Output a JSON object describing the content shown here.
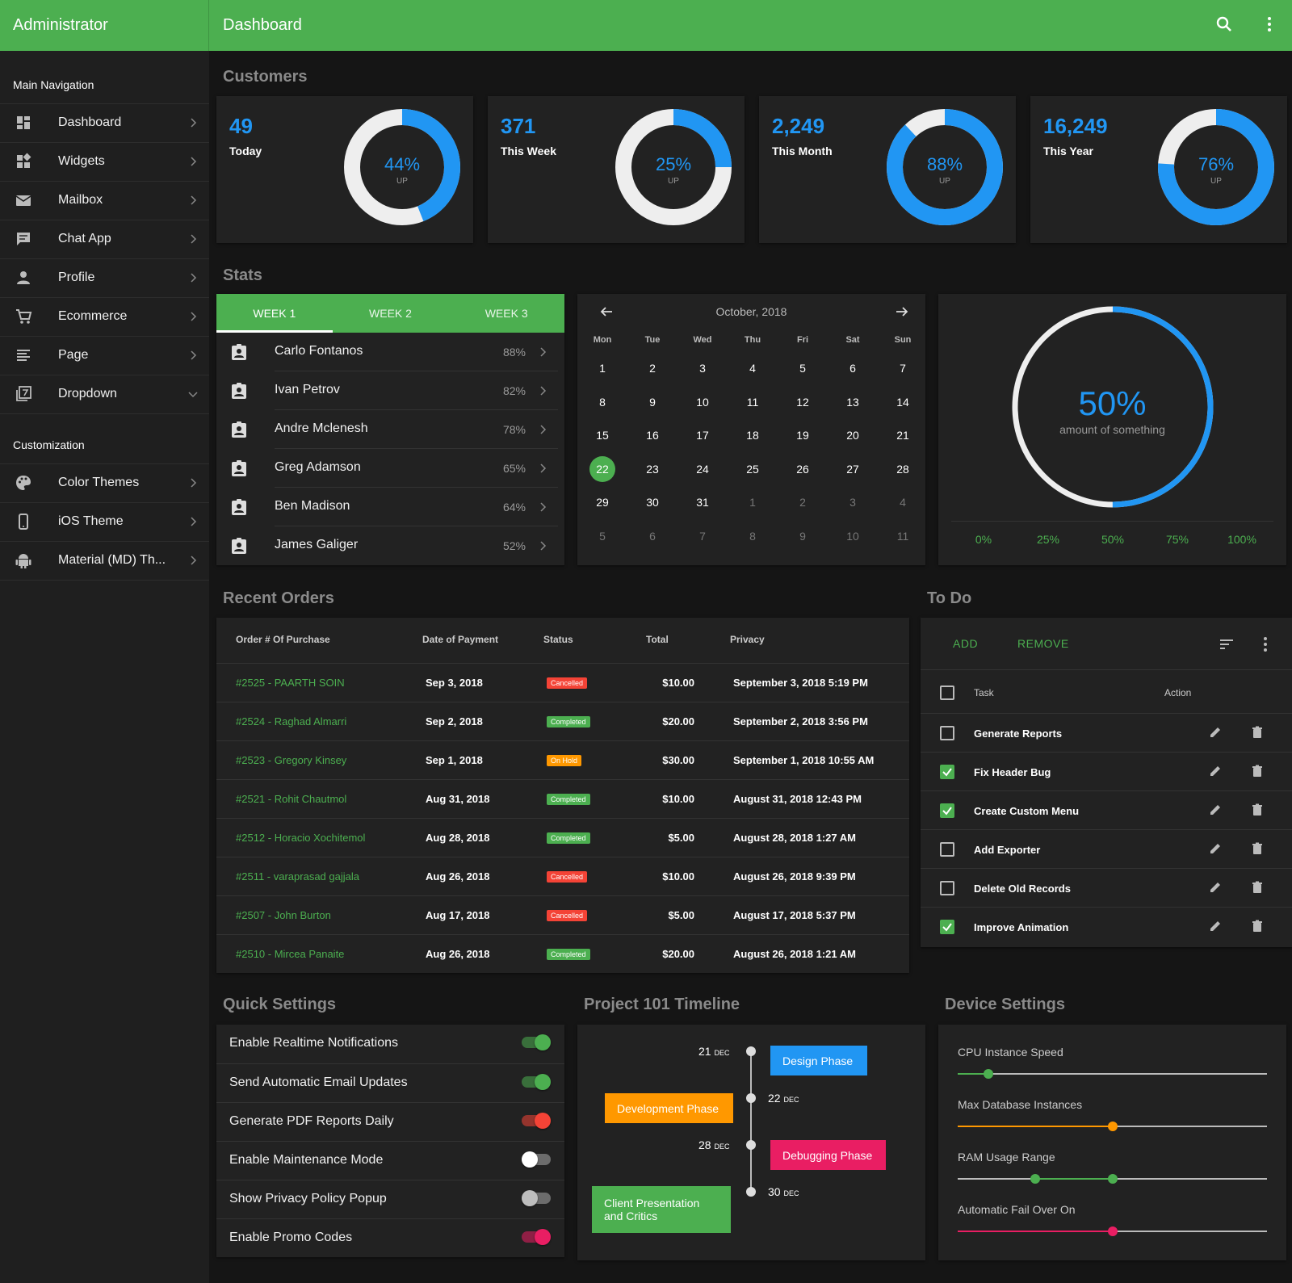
{
  "header": {
    "brand": "Administrator",
    "title": "Dashboard"
  },
  "sidebar": {
    "main_heading": "Main Navigation",
    "main_items": [
      {
        "label": "Dashboard",
        "icon": "dashboard-icon"
      },
      {
        "label": "Widgets",
        "icon": "widgets-icon"
      },
      {
        "label": "Mailbox",
        "icon": "mail-icon"
      },
      {
        "label": "Chat App",
        "icon": "chat-icon"
      },
      {
        "label": "Profile",
        "icon": "person-icon"
      },
      {
        "label": "Ecommerce",
        "icon": "cart-icon"
      },
      {
        "label": "Page",
        "icon": "page-icon"
      },
      {
        "label": "Dropdown",
        "icon": "dropdown-icon"
      }
    ],
    "custom_heading": "Customization",
    "custom_items": [
      {
        "label": "Color Themes",
        "icon": "palette-icon"
      },
      {
        "label": "iOS Theme",
        "icon": "phone-icon"
      },
      {
        "label": "Material (MD) Th...",
        "icon": "android-icon"
      }
    ]
  },
  "customers": {
    "title": "Customers",
    "cards": [
      {
        "value": "49",
        "label": "Today",
        "percent": 44,
        "percent_label": "44%",
        "sub": "UP"
      },
      {
        "value": "371",
        "label": "This Week",
        "percent": 25,
        "percent_label": "25%",
        "sub": "UP"
      },
      {
        "value": "2,249",
        "label": "This Month",
        "percent": 88,
        "percent_label": "88%",
        "sub": "UP"
      },
      {
        "value": "16,249",
        "label": "This Year",
        "percent": 76,
        "percent_label": "76%",
        "sub": "UP"
      }
    ]
  },
  "stats": {
    "title": "Stats",
    "tabs": [
      "WEEK 1",
      "WEEK 2",
      "WEEK 3"
    ],
    "people": [
      {
        "name": "Carlo Fontanos",
        "pct": "88%"
      },
      {
        "name": "Ivan Petrov",
        "pct": "82%"
      },
      {
        "name": "Andre Mclenesh",
        "pct": "78%"
      },
      {
        "name": "Greg Adamson",
        "pct": "65%"
      },
      {
        "name": "Ben Madison",
        "pct": "64%"
      },
      {
        "name": "James Galiger",
        "pct": "52%"
      }
    ]
  },
  "calendar": {
    "month": "October, 2018",
    "days_of_week": [
      "Mon",
      "Tue",
      "Wed",
      "Thu",
      "Fri",
      "Sat",
      "Sun"
    ],
    "weeks": [
      [
        "1",
        "2",
        "3",
        "4",
        "5",
        "6",
        "7"
      ],
      [
        "8",
        "9",
        "10",
        "11",
        "12",
        "13",
        "14"
      ],
      [
        "15",
        "16",
        "17",
        "18",
        "19",
        "20",
        "21"
      ],
      [
        "22",
        "23",
        "24",
        "25",
        "26",
        "27",
        "28"
      ],
      [
        "29",
        "30",
        "31",
        "1",
        "2",
        "3",
        "4"
      ],
      [
        "5",
        "6",
        "7",
        "8",
        "9",
        "10",
        "11"
      ]
    ],
    "selected": "22"
  },
  "gauge": {
    "value": 50,
    "label": "50%",
    "caption": "amount of something",
    "ticks": [
      "0%",
      "25%",
      "50%",
      "75%",
      "100%"
    ]
  },
  "orders": {
    "title": "Recent Orders",
    "columns": [
      "Order # Of Purchase",
      "Date of Payment",
      "Status",
      "Total",
      "Privacy"
    ],
    "rows": [
      {
        "order": "#2525 - PAARTH SOIN",
        "date": "Sep 3, 2018",
        "status": "Cancelled",
        "total": "$10.00",
        "privacy": "September 3, 2018 5:19 PM"
      },
      {
        "order": "#2524 - Raghad Almarri",
        "date": "Sep 2, 2018",
        "status": "Completed",
        "total": "$20.00",
        "privacy": "September 2, 2018 3:56 PM"
      },
      {
        "order": "#2523 - Gregory Kinsey",
        "date": "Sep 1, 2018",
        "status": "On Hold",
        "total": "$30.00",
        "privacy": "September 1, 2018 10:55 AM"
      },
      {
        "order": "#2521 - Rohit Chautmol",
        "date": "Aug 31, 2018",
        "status": "Completed",
        "total": "$10.00",
        "privacy": "August 31, 2018 12:43 PM"
      },
      {
        "order": "#2512 - Horacio Xochitemol",
        "date": "Aug 28, 2018",
        "status": "Completed",
        "total": "$5.00",
        "privacy": "August 28, 2018 1:27 AM"
      },
      {
        "order": "#2511 - varaprasad gajjala",
        "date": "Aug 26, 2018",
        "status": "Cancelled",
        "total": "$10.00",
        "privacy": "August 26, 2018 9:39 PM"
      },
      {
        "order": "#2507 - John Burton",
        "date": "Aug 17, 2018",
        "status": "Cancelled",
        "total": "$5.00",
        "privacy": "August 17, 2018 5:37 PM"
      },
      {
        "order": "#2510 - Mircea Panaite",
        "date": "Aug 26, 2018",
        "status": "Completed",
        "total": "$20.00",
        "privacy": "August 26, 2018 1:21 AM"
      }
    ],
    "status_colors": {
      "Cancelled": "#f44336",
      "Completed": "#4caf50",
      "On Hold": "#ff9800"
    }
  },
  "todo": {
    "title": "To Do",
    "add_label": "ADD",
    "remove_label": "REMOVE",
    "col_task": "Task",
    "col_action": "Action",
    "items": [
      {
        "task": "Generate Reports",
        "done": false
      },
      {
        "task": "Fix Header Bug",
        "done": true
      },
      {
        "task": "Create Custom Menu",
        "done": true
      },
      {
        "task": "Add Exporter",
        "done": false
      },
      {
        "task": "Delete Old Records",
        "done": false
      },
      {
        "task": "Improve Animation",
        "done": true
      }
    ]
  },
  "quick_settings": {
    "title": "Quick Settings",
    "items": [
      {
        "label": "Enable Realtime Notifications",
        "on": true,
        "color": "#4caf50"
      },
      {
        "label": "Send Automatic Email Updates",
        "on": true,
        "color": "#4caf50"
      },
      {
        "label": "Generate PDF Reports Daily",
        "on": true,
        "color": "#f44336"
      },
      {
        "label": "Enable Maintenance Mode",
        "on": false,
        "color": "#ffffff"
      },
      {
        "label": "Show Privacy Policy Popup",
        "on": false,
        "color": "#9e9e9e"
      },
      {
        "label": "Enable Promo Codes",
        "on": true,
        "color": "#e91e63"
      }
    ]
  },
  "timeline": {
    "title": "Project 101 Timeline",
    "events": [
      {
        "day": "21",
        "mon": "DEC",
        "label": "Design Phase",
        "color": "#2196f3"
      },
      {
        "day": "22",
        "mon": "DEC",
        "label": "Development Phase",
        "color": "#ff9800"
      },
      {
        "day": "28",
        "mon": "DEC",
        "label": "Debugging Phase",
        "color": "#e91e63"
      },
      {
        "day": "30",
        "mon": "DEC",
        "label": "Client Presentation and Critics",
        "color": "#4caf50"
      }
    ]
  },
  "device_settings": {
    "title": "Device Settings",
    "sliders": [
      {
        "label": "CPU Instance Speed",
        "color": "#4caf50",
        "values": [
          0.1
        ]
      },
      {
        "label": "Max Database Instances",
        "color": "#ff9800",
        "values": [
          0.5
        ]
      },
      {
        "label": "RAM Usage Range",
        "color": "#4caf50",
        "values": [
          0.25,
          0.5
        ]
      },
      {
        "label": "Automatic Fail Over On",
        "color": "#e91e63",
        "values": [
          0.5
        ]
      }
    ]
  }
}
